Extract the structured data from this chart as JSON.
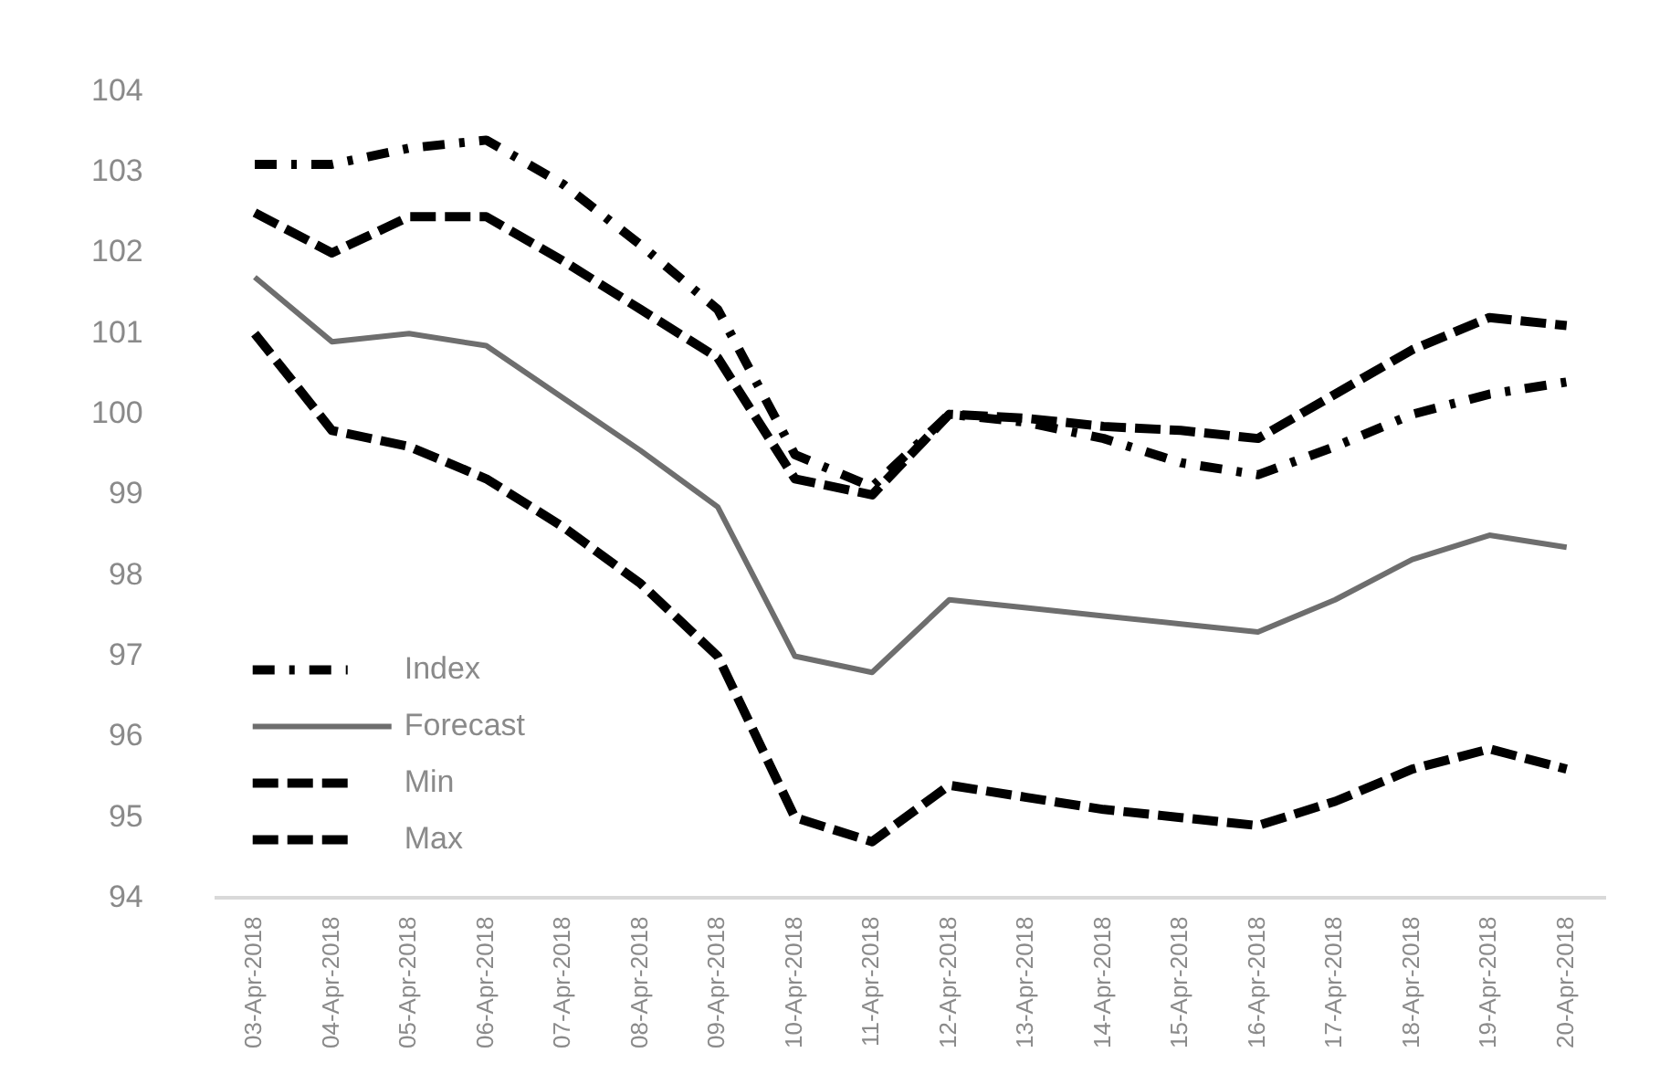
{
  "chart_data": {
    "type": "line",
    "categories": [
      "03-Apr-2018",
      "04-Apr-2018",
      "05-Apr-2018",
      "06-Apr-2018",
      "07-Apr-2018",
      "08-Apr-2018",
      "09-Apr-2018",
      "10-Apr-2018",
      "11-Apr-2018",
      "12-Apr-2018",
      "13-Apr-2018",
      "14-Apr-2018",
      "15-Apr-2018",
      "16-Apr-2018",
      "17-Apr-2018",
      "18-Apr-2018",
      "19-Apr-2018",
      "20-Apr-2018"
    ],
    "series": [
      {
        "name": "Index",
        "color": "#000000",
        "line_style": "dashdot",
        "values": [
          103.1,
          103.1,
          103.3,
          103.4,
          102.85,
          102.1,
          101.3,
          99.5,
          99.1,
          100.0,
          99.9,
          99.7,
          99.4,
          99.25,
          99.6,
          100.0,
          100.25,
          100.4
        ]
      },
      {
        "name": "Forecast",
        "color": "#6e6e6e",
        "line_style": "solid",
        "values": [
          101.7,
          100.9,
          101.0,
          100.85,
          100.2,
          99.55,
          98.85,
          97.0,
          96.8,
          97.7,
          97.6,
          97.5,
          97.4,
          97.3,
          97.7,
          98.2,
          98.5,
          98.35
        ]
      },
      {
        "name": "Min",
        "color": "#000000",
        "line_style": "dashed",
        "values": [
          101.0,
          99.8,
          99.6,
          99.2,
          98.6,
          97.9,
          97.0,
          95.0,
          94.7,
          95.4,
          95.25,
          95.1,
          95.0,
          94.9,
          95.2,
          95.6,
          95.85,
          95.6
        ]
      },
      {
        "name": "Max",
        "color": "#000000",
        "line_style": "dashed",
        "values": [
          102.5,
          102.0,
          102.45,
          102.45,
          101.9,
          101.3,
          100.7,
          99.2,
          99.0,
          100.0,
          99.95,
          99.85,
          99.8,
          99.7,
          100.25,
          100.8,
          101.2,
          101.1
        ]
      }
    ],
    "ylim": [
      94,
      104
    ],
    "yticks": [
      94,
      95,
      96,
      97,
      98,
      99,
      100,
      101,
      102,
      103,
      104
    ],
    "grid": false,
    "legend": "bottom left",
    "marker": "none"
  }
}
